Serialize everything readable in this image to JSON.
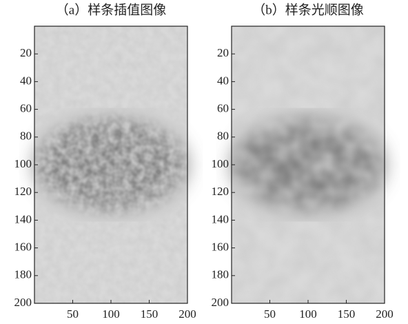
{
  "chart_data": [
    {
      "type": "image",
      "title": "（a）样条插值图像",
      "xlim": [
        0,
        200
      ],
      "ylim": [
        0,
        200
      ],
      "xticks": [
        50,
        100,
        150,
        200
      ],
      "yticks": [
        20,
        40,
        60,
        80,
        100,
        120,
        140,
        160,
        180,
        200
      ],
      "y_reversed": true
    },
    {
      "type": "image",
      "title": "（b）样条光顺图像",
      "xlim": [
        0,
        200
      ],
      "ylim": [
        0,
        200
      ],
      "xticks": [
        50,
        100,
        150,
        200
      ],
      "yticks": [
        20,
        40,
        60,
        80,
        100,
        120,
        140,
        160,
        180,
        200
      ],
      "y_reversed": true
    }
  ]
}
